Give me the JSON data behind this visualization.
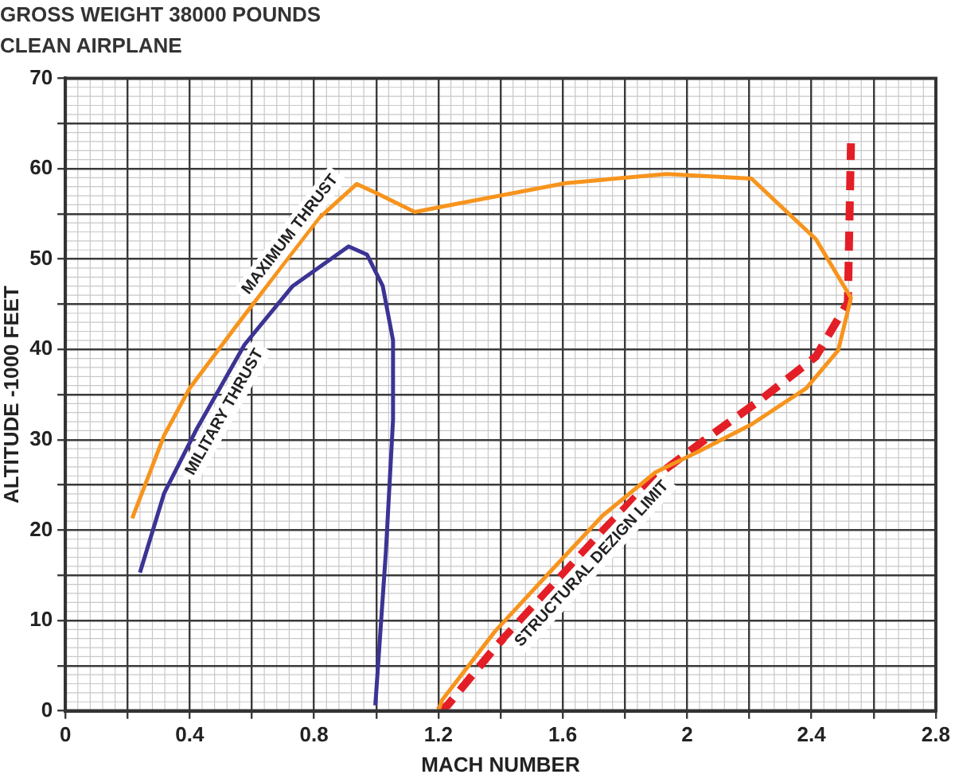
{
  "chart_data": {
    "type": "line",
    "title": "GROSS WEIGHT 38000 POUNDS",
    "subtitle": "CLEAN AIRPLANE",
    "xlabel": "MACH NUMBER",
    "ylabel": "ALTITUDE -1000 FEET",
    "xlim": [
      0,
      2.8
    ],
    "ylim": [
      0,
      70
    ],
    "xticks": [
      0,
      {
        "value": 0.2,
        "label": null
      },
      0.4,
      {
        "value": 0.6,
        "label": null
      },
      0.8,
      {
        "value": 1.0,
        "label": null
      },
      1.2,
      {
        "value": 1.4,
        "label": null
      },
      1.6,
      {
        "value": 1.8,
        "label": null
      },
      2.0,
      {
        "value": 2.2,
        "label": null
      },
      2.4,
      {
        "value": 2.6,
        "label": null
      },
      2.8
    ],
    "yticks": [
      0,
      {
        "value": 5,
        "label": null
      },
      10,
      {
        "value": 15,
        "label": null
      },
      20,
      {
        "value": 25,
        "label": null
      },
      30,
      {
        "value": 35,
        "label": null
      },
      40,
      {
        "value": 45,
        "label": null
      },
      50,
      {
        "value": 55,
        "label": null
      },
      60,
      {
        "value": 65,
        "label": null
      },
      70
    ],
    "grid": true,
    "legend": false,
    "marker": "none",
    "line_style": "solid",
    "series": [
      {
        "name": "MAXIMUM THRUST",
        "color": "#f7941d",
        "x": [
          0.215,
          0.318,
          0.4,
          0.541,
          0.696,
          0.815,
          0.937,
          1.006,
          1.124,
          1.212,
          1.609,
          1.934,
          2.207,
          2.414,
          2.527,
          2.486,
          2.383,
          2.207,
          2.037,
          1.898,
          1.728,
          1.557,
          1.382,
          1.212,
          1.2
        ],
        "values": [
          21.3,
          30.5,
          35.7,
          42.2,
          49.2,
          54.5,
          58.3,
          57.2,
          55.2,
          55.8,
          58.4,
          59.4,
          58.9,
          52.2,
          45.7,
          39.9,
          35.7,
          31.7,
          28.7,
          26.4,
          21.6,
          15.3,
          8.8,
          1.2,
          0
        ]
      },
      {
        "name": "MILITARY THRUST",
        "color": "#3b3494",
        "x": [
          0.24,
          0.318,
          0.421,
          0.576,
          0.731,
          0.911,
          0.97,
          1.021,
          1.054,
          1.054,
          1.031,
          0.997
        ],
        "values": [
          15.3,
          24.1,
          31.1,
          40.5,
          47.0,
          51.4,
          50.5,
          47.0,
          41.0,
          32.2,
          17.6,
          0.6
        ]
      },
      {
        "name": "STRUCTURAL DEZIGN LIMIT",
        "color": "#e41e26",
        "line_style": "dashed",
        "x": [
          1.2,
          1.229,
          1.382,
          1.557,
          1.728,
          1.898,
          2.073,
          2.243,
          2.414,
          2.517,
          2.527
        ],
        "values": [
          0,
          0.6,
          7.0,
          13.5,
          19.9,
          25.9,
          30.4,
          34.6,
          39.2,
          45.2,
          62.8
        ]
      }
    ]
  }
}
